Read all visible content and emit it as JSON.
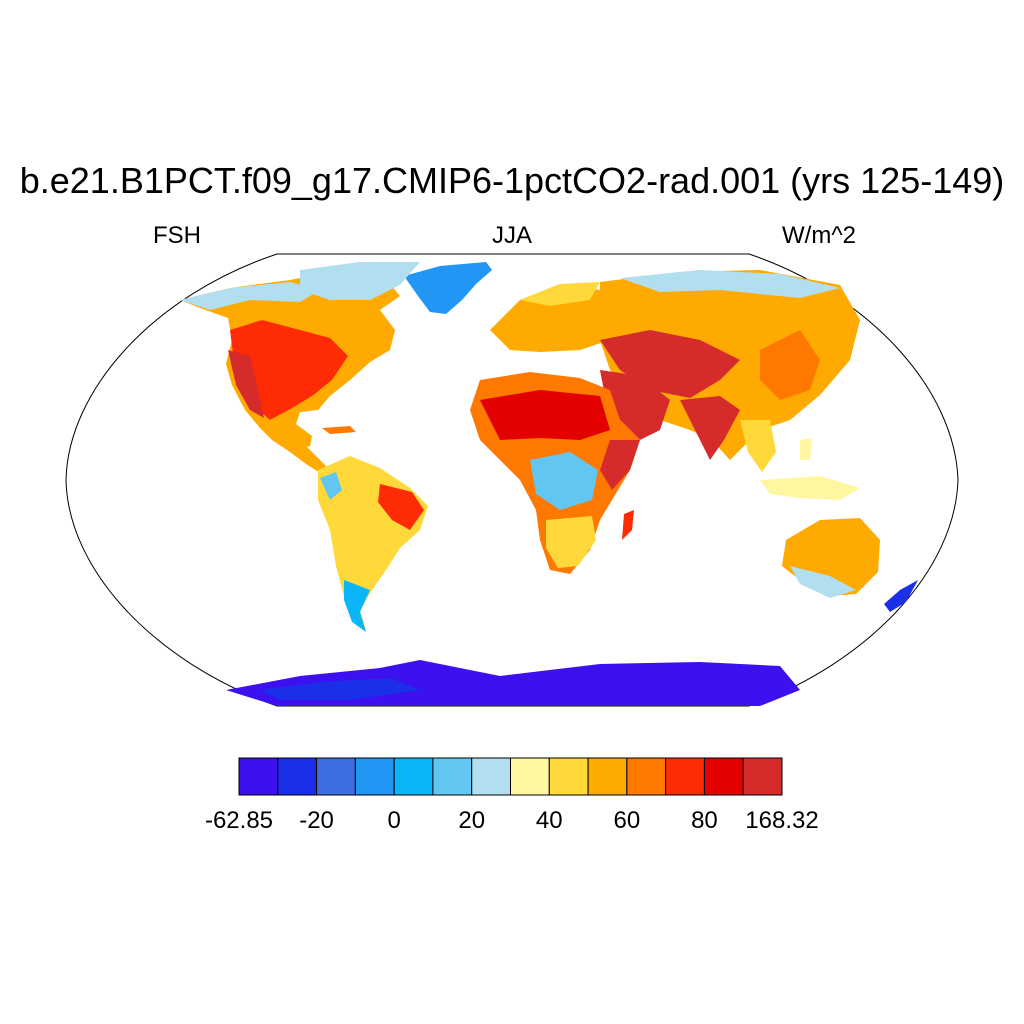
{
  "title": "b.e21.B1PCT.f09_g17.CMIP6-1pctCO2-rad.001 (yrs 125-149)",
  "left_label": "FSH",
  "center_label": "JJA",
  "right_label": "W/m^2",
  "colorbar": {
    "colors": [
      "#3d10f0",
      "#1b2ee8",
      "#3c6ee2",
      "#2196f5",
      "#0bb6f8",
      "#62c6f3",
      "#b2dff0",
      "#fff7a0",
      "#ffd839",
      "#ffaa00",
      "#ff7800",
      "#ff2b05",
      "#e20000",
      "#d52b2b"
    ],
    "tick_labels": [
      "-62.85",
      "-20",
      "0",
      "20",
      "40",
      "60",
      "80",
      "168.32"
    ],
    "tick_boundary_index": [
      0,
      2,
      4,
      6,
      8,
      10,
      12,
      14
    ]
  },
  "map": {
    "projection": "Robinson",
    "field": "FSH",
    "ocean_color": "#ffffff"
  }
}
